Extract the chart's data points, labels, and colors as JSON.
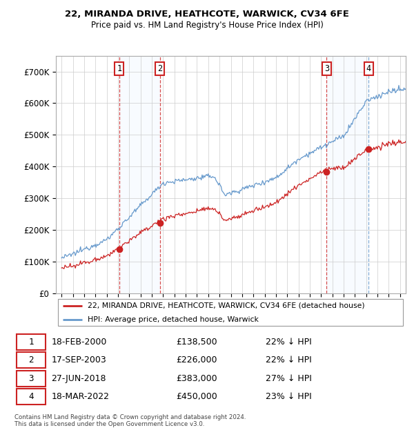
{
  "title1": "22, MIRANDA DRIVE, HEATHCOTE, WARWICK, CV34 6FE",
  "title2": "Price paid vs. HM Land Registry's House Price Index (HPI)",
  "legend_line1": "22, MIRANDA DRIVE, HEATHCOTE, WARWICK, CV34 6FE (detached house)",
  "legend_line2": "HPI: Average price, detached house, Warwick",
  "footnote1": "Contains HM Land Registry data © Crown copyright and database right 2024.",
  "footnote2": "This data is licensed under the Open Government Licence v3.0.",
  "transactions": [
    {
      "label": "1",
      "date": "18-FEB-2000",
      "price": 138500,
      "pct": "22%",
      "x": 2000.12,
      "vline_style": "red_dashed"
    },
    {
      "label": "2",
      "date": "17-SEP-2003",
      "price": 226000,
      "pct": "22%",
      "x": 2003.71,
      "vline_style": "red_dashed"
    },
    {
      "label": "3",
      "date": "27-JUN-2018",
      "price": 383000,
      "pct": "27%",
      "x": 2018.49,
      "vline_style": "red_dashed"
    },
    {
      "label": "4",
      "date": "18-MAR-2022",
      "price": 450000,
      "pct": "23%",
      "x": 2022.21,
      "vline_style": "blue_dashed"
    }
  ],
  "hpi_color": "#6699cc",
  "price_color": "#cc2222",
  "shade_color": "#ddeeff",
  "vline_red": "#cc2222",
  "vline_blue": "#6699cc",
  "box_edge_color": "#cc2222",
  "ylim": [
    0,
    750000
  ],
  "xlim_start": 1994.5,
  "xlim_end": 2025.5,
  "yticks": [
    0,
    100000,
    200000,
    300000,
    400000,
    500000,
    600000,
    700000
  ],
  "ytick_labels": [
    "£0",
    "£100K",
    "£200K",
    "£300K",
    "£400K",
    "£500K",
    "£600K",
    "£700K"
  ],
  "xticks": [
    1995,
    1996,
    1997,
    1998,
    1999,
    2000,
    2001,
    2002,
    2003,
    2004,
    2005,
    2006,
    2007,
    2008,
    2009,
    2010,
    2011,
    2012,
    2013,
    2014,
    2015,
    2016,
    2017,
    2018,
    2019,
    2020,
    2021,
    2022,
    2023,
    2024,
    2025
  ]
}
